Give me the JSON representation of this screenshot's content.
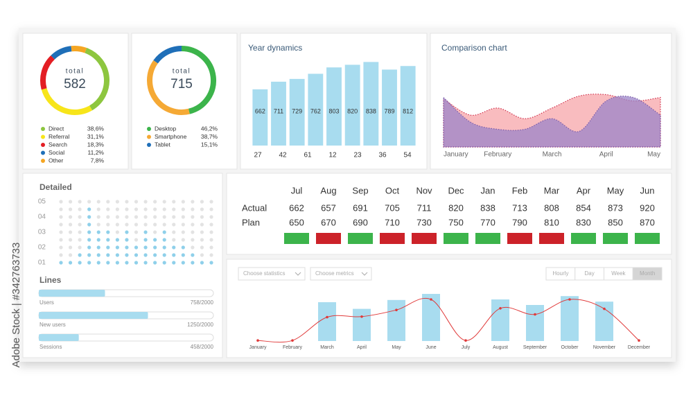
{
  "watermark": "Adobe Stock | #342763733",
  "chart_data": [
    {
      "type": "donut",
      "center_label": "total",
      "total": 582,
      "categories": [
        "Direct",
        "Referral",
        "Search",
        "Social",
        "Other"
      ],
      "values": [
        38.6,
        31.1,
        18.3,
        11.2,
        7.8
      ],
      "value_labels": [
        "38,6%",
        "31,1%",
        "18,3%",
        "11,2%",
        "7,8%"
      ],
      "colors": [
        "#8dc63f",
        "#f7e51a",
        "#e31e24",
        "#1f6fb8",
        "#f5a623"
      ]
    },
    {
      "type": "donut",
      "center_label": "total",
      "total": 715,
      "categories": [
        "Desktop",
        "Smartphone",
        "Tablet"
      ],
      "values": [
        46.2,
        38.7,
        15.1
      ],
      "value_labels": [
        "46,2%",
        "38,7%",
        "15,1%"
      ],
      "colors": [
        "#3cb44b",
        "#f5a935",
        "#1f6fb8"
      ]
    },
    {
      "type": "bar",
      "title": "Year dynamics",
      "values": [
        662,
        711,
        729,
        762,
        803,
        820,
        838,
        789,
        812
      ],
      "axis_labels": [
        27,
        42,
        61,
        12,
        23,
        36,
        54
      ],
      "color": "#a8dcef",
      "ylim": [
        300,
        880
      ]
    },
    {
      "type": "area",
      "title": "Comparison chart",
      "categories": [
        "January",
        null,
        "February",
        null,
        "March",
        null,
        "April",
        null,
        "May"
      ],
      "series": [
        {
          "color": "#f7a5aa",
          "stroke": "#cf2e4a",
          "values": [
            68,
            45,
            55,
            40,
            55,
            72,
            74,
            65,
            70
          ]
        },
        {
          "color": "#9b84c8",
          "stroke": "#7a5aa8",
          "values": [
            70,
            35,
            25,
            25,
            40,
            22,
            65,
            70,
            45
          ]
        }
      ],
      "ylim": [
        0,
        100
      ]
    },
    {
      "type": "dot_matrix",
      "title": "Detailed",
      "values": [
        1,
        1,
        1.5,
        4.5,
        3,
        3,
        2.5,
        3,
        2,
        3,
        2.5,
        3,
        2,
        2,
        1.5,
        1,
        1
      ],
      "ylim": [
        1,
        5
      ],
      "yticks": [
        {
          "value": 5,
          "label": "05"
        },
        {
          "value": 4,
          "label": "04"
        },
        {
          "value": 3,
          "label": "03"
        },
        {
          "value": 2,
          "label": "02"
        },
        {
          "value": 1,
          "label": "01"
        }
      ],
      "color": "#8fd0ea"
    },
    {
      "type": "progress",
      "title": "Lines",
      "items": [
        {
          "name": "Users",
          "value": 758,
          "max": 2000,
          "label": "758/2000"
        },
        {
          "name": "New users",
          "value": 1250,
          "max": 2000,
          "label": "1250/2000"
        },
        {
          "name": "Sessions",
          "value": 458,
          "max": 2000,
          "label": "458/2000"
        }
      ],
      "color": "#a8dcef"
    },
    {
      "type": "combo",
      "categories": [
        "January",
        "February",
        "March",
        "April",
        "May",
        "June",
        "July",
        "August",
        "September",
        "October",
        "November",
        "December"
      ],
      "bar_values": [
        null,
        null,
        70,
        58,
        74,
        85,
        null,
        75,
        65,
        81,
        71,
        null
      ],
      "line_values": [
        1,
        1,
        43,
        44,
        56,
        75,
        1,
        59,
        48,
        75,
        58,
        1
      ],
      "bar_color": "#a8dcef",
      "line_color": "#e03a3a",
      "ylim": [
        0,
        100
      ],
      "filters": [
        "Choose statistics",
        "Choose metrics"
      ],
      "periods": [
        "Hourly",
        "Day",
        "Week",
        "Month"
      ],
      "active_period": 3
    }
  ],
  "table": {
    "columns": [
      "Jul",
      "Aug",
      "Sep",
      "Oct",
      "Nov",
      "Dec",
      "Jan",
      "Feb",
      "Mar",
      "Apr",
      "May",
      "Jun"
    ],
    "rows": [
      {
        "label": "Actual",
        "values": [
          662,
          657,
          691,
          705,
          711,
          820,
          838,
          713,
          808,
          854,
          873,
          920
        ]
      },
      {
        "label": "Plan",
        "values": [
          650,
          670,
          690,
          710,
          730,
          750,
          770,
          790,
          810,
          830,
          850,
          870
        ]
      }
    ],
    "colors": {
      "above": "#3cb44b",
      "below": "#cc2229"
    }
  }
}
